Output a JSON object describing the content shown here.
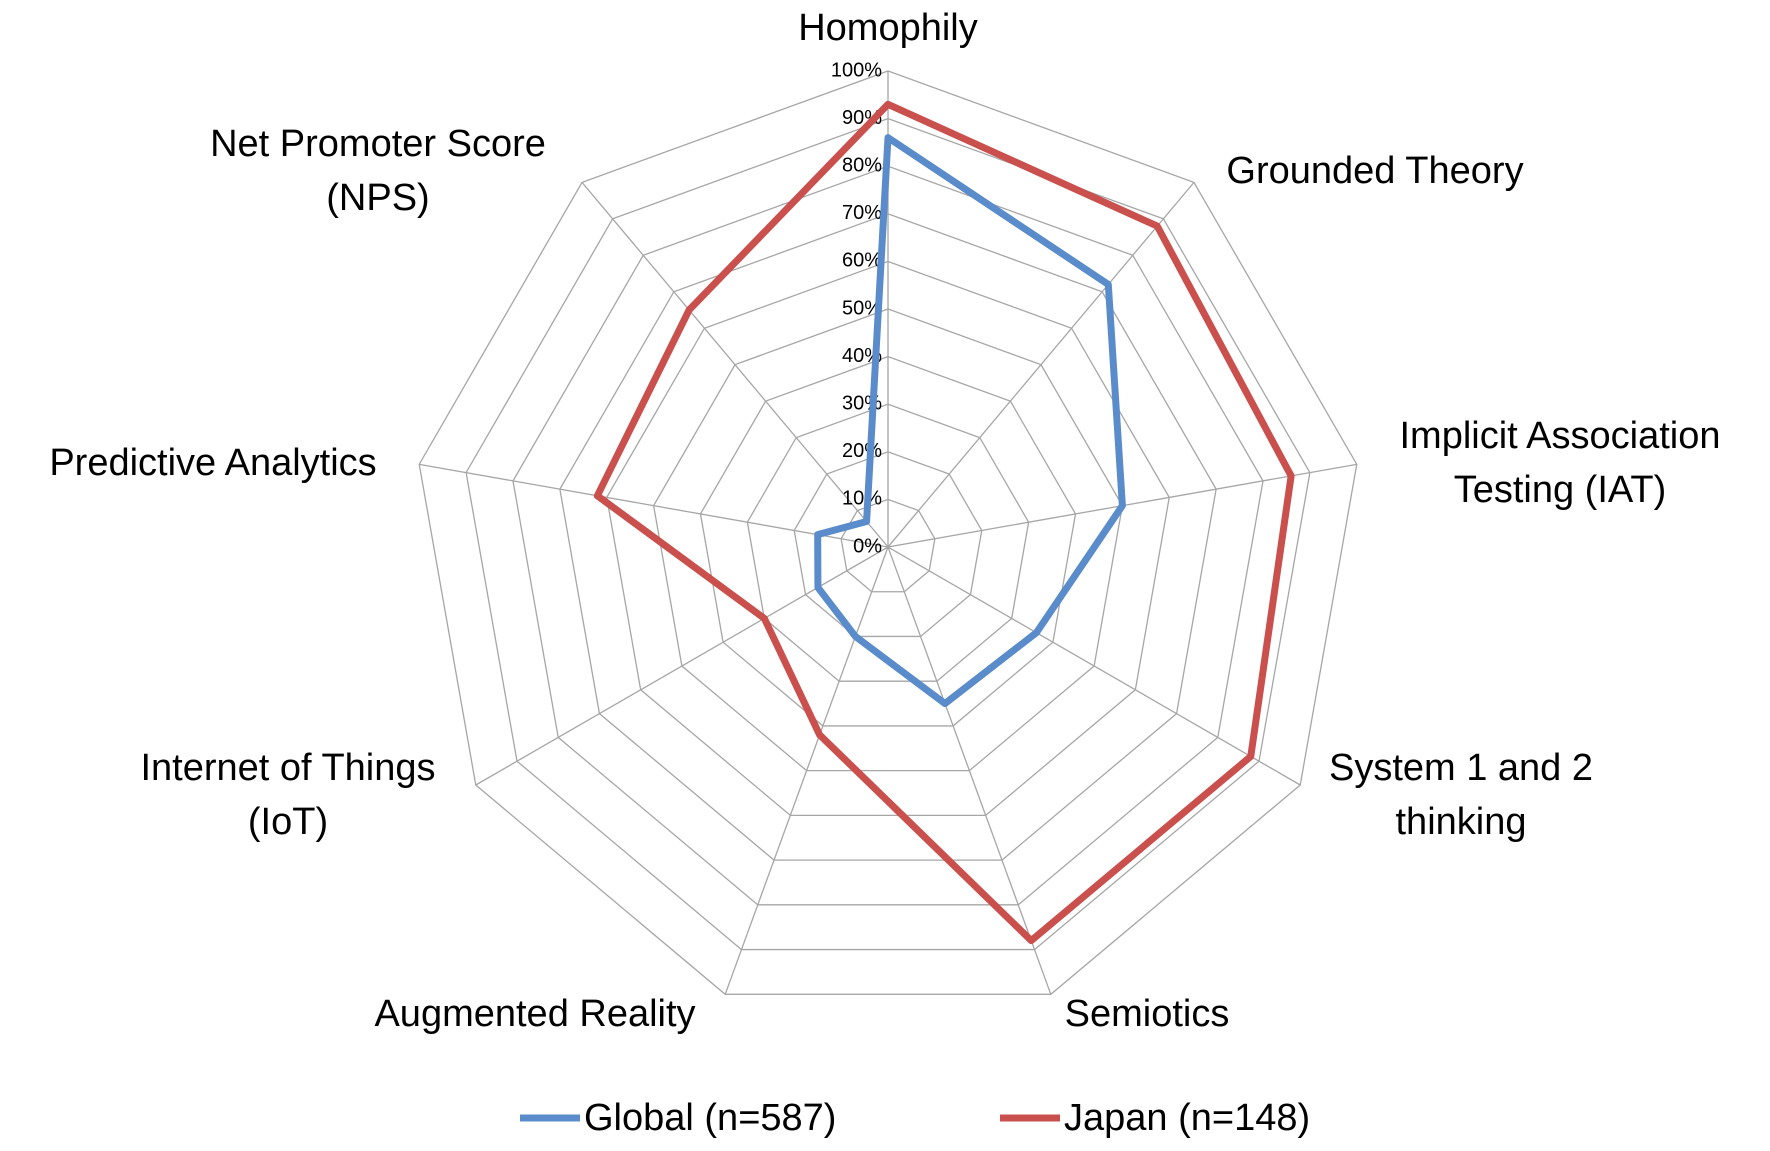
{
  "chart_data": {
    "type": "radar",
    "categories": [
      "Homophily",
      "Grounded Theory",
      "Implicit Association Testing (IAT)",
      "System 1 and 2 thinking",
      "Semiotics",
      "Augmented Reality",
      "Internet of Things (IoT)",
      "Predictive Analytics",
      "Net Promoter Score (NPS)"
    ],
    "series": [
      {
        "name": "Global (n=587)",
        "color": "#5a8ccb",
        "values": [
          86,
          72,
          50,
          36,
          35,
          20,
          17,
          15,
          7
        ]
      },
      {
        "name": "Japan (n=148)",
        "color": "#c9504d",
        "values": [
          93,
          88,
          86,
          88,
          88,
          42,
          30,
          62,
          65
        ]
      }
    ],
    "ylim": [
      0,
      100
    ],
    "yticks": [
      {
        "value": 0,
        "label": "0%"
      },
      {
        "value": 10,
        "label": "10%"
      },
      {
        "value": 20,
        "label": "20%"
      },
      {
        "value": 30,
        "label": "30%"
      },
      {
        "value": 40,
        "label": "40%"
      },
      {
        "value": 50,
        "label": "50%"
      },
      {
        "value": 60,
        "label": "60%"
      },
      {
        "value": 70,
        "label": "70%"
      },
      {
        "value": 80,
        "label": "80%"
      },
      {
        "value": 90,
        "label": "90%"
      },
      {
        "value": 100,
        "label": "100%"
      }
    ],
    "grid": true,
    "legend": "bottom"
  }
}
